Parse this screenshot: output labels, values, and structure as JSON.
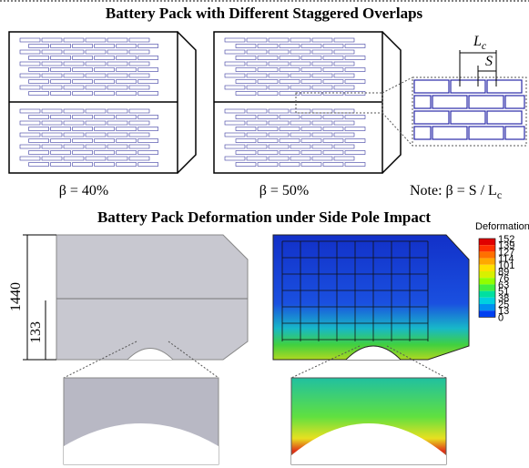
{
  "figure": {
    "top_title": "Battery Pack with Different Staggered Overlaps",
    "pack_labels": [
      "β = 40%",
      "β = 50%"
    ],
    "lc_label": {
      "main": "L",
      "sub": "c"
    },
    "s_label": "S",
    "note": {
      "main": "Note: β = S / L",
      "sub": "c"
    },
    "bottom_title": "Battery Pack Deformation under Side Pole Impact",
    "dimensions": [
      "1440",
      "133"
    ],
    "legend_title": "Deformation",
    "legend_values": [
      "152",
      "139",
      "127",
      "114",
      "101",
      "89",
      "76",
      "63",
      "51",
      "38",
      "25",
      "13",
      "0"
    ]
  }
}
